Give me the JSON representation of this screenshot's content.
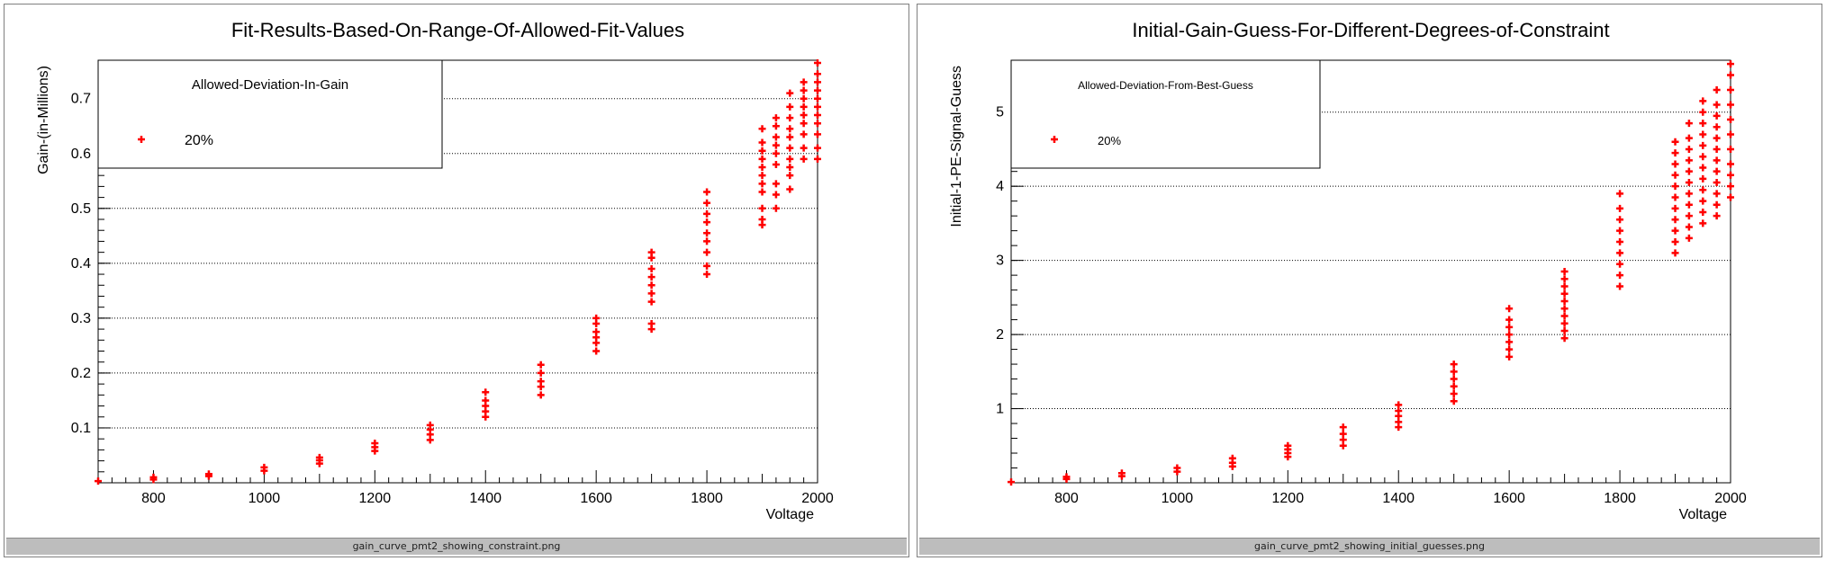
{
  "colors": {
    "marker": "#ff0000",
    "grid": "#000000",
    "frame": "#000000",
    "status_bar": "#bdbdbd"
  },
  "panels": [
    {
      "status": "gain_curve_pmt2_showing_constraint.png"
    },
    {
      "status": "gain_curve_pmt2_showing_initial_guesses.png"
    }
  ],
  "chart_data": [
    {
      "type": "scatter",
      "title": "Fit-Results-Based-On-Range-Of-Allowed-Fit-Values",
      "xlabel": "Voltage",
      "ylabel": "Gain-(in-Millions)",
      "xlim": [
        700,
        2000
      ],
      "ylim": [
        0,
        0.77
      ],
      "x_ticks": [
        800,
        1000,
        1200,
        1400,
        1600,
        1800,
        2000
      ],
      "y_ticks": [
        0.1,
        0.2,
        0.3,
        0.4,
        0.5,
        0.6,
        0.7
      ],
      "grid": "horizontal dotted",
      "legend": {
        "title": "Allowed-Deviation-In-Gain",
        "entries": [
          "20%"
        ],
        "placement": "top-left"
      },
      "series": [
        {
          "name": "20%",
          "points": [
            [
              700,
              0.003
            ],
            [
              800,
              0.006
            ],
            [
              800,
              0.01
            ],
            [
              900,
              0.012
            ],
            [
              900,
              0.016
            ],
            [
              1000,
              0.022
            ],
            [
              1000,
              0.028
            ],
            [
              1100,
              0.035
            ],
            [
              1100,
              0.041
            ],
            [
              1100,
              0.046
            ],
            [
              1200,
              0.058
            ],
            [
              1200,
              0.065
            ],
            [
              1200,
              0.072
            ],
            [
              1300,
              0.078
            ],
            [
              1300,
              0.088
            ],
            [
              1300,
              0.097
            ],
            [
              1300,
              0.105
            ],
            [
              1400,
              0.12
            ],
            [
              1400,
              0.13
            ],
            [
              1400,
              0.14
            ],
            [
              1400,
              0.15
            ],
            [
              1400,
              0.165
            ],
            [
              1500,
              0.16
            ],
            [
              1500,
              0.175
            ],
            [
              1500,
              0.185
            ],
            [
              1500,
              0.2
            ],
            [
              1500,
              0.215
            ],
            [
              1600,
              0.24
            ],
            [
              1600,
              0.255
            ],
            [
              1600,
              0.265
            ],
            [
              1600,
              0.275
            ],
            [
              1600,
              0.29
            ],
            [
              1600,
              0.3
            ],
            [
              1700,
              0.28
            ],
            [
              1700,
              0.29
            ],
            [
              1700,
              0.33
            ],
            [
              1700,
              0.345
            ],
            [
              1700,
              0.36
            ],
            [
              1700,
              0.375
            ],
            [
              1700,
              0.39
            ],
            [
              1700,
              0.41
            ],
            [
              1700,
              0.42
            ],
            [
              1800,
              0.38
            ],
            [
              1800,
              0.395
            ],
            [
              1800,
              0.42
            ],
            [
              1800,
              0.44
            ],
            [
              1800,
              0.455
            ],
            [
              1800,
              0.475
            ],
            [
              1800,
              0.49
            ],
            [
              1800,
              0.51
            ],
            [
              1800,
              0.53
            ],
            [
              1900,
              0.47
            ],
            [
              1900,
              0.48
            ],
            [
              1900,
              0.5
            ],
            [
              1900,
              0.53
            ],
            [
              1900,
              0.545
            ],
            [
              1900,
              0.56
            ],
            [
              1900,
              0.575
            ],
            [
              1900,
              0.59
            ],
            [
              1900,
              0.605
            ],
            [
              1900,
              0.62
            ],
            [
              1900,
              0.645
            ],
            [
              1925,
              0.5
            ],
            [
              1925,
              0.525
            ],
            [
              1925,
              0.545
            ],
            [
              1925,
              0.58
            ],
            [
              1925,
              0.6
            ],
            [
              1925,
              0.615
            ],
            [
              1925,
              0.63
            ],
            [
              1925,
              0.65
            ],
            [
              1925,
              0.665
            ],
            [
              1950,
              0.535
            ],
            [
              1950,
              0.56
            ],
            [
              1950,
              0.575
            ],
            [
              1950,
              0.59
            ],
            [
              1950,
              0.61
            ],
            [
              1950,
              0.63
            ],
            [
              1950,
              0.645
            ],
            [
              1950,
              0.665
            ],
            [
              1950,
              0.685
            ],
            [
              1950,
              0.71
            ],
            [
              1975,
              0.59
            ],
            [
              1975,
              0.61
            ],
            [
              1975,
              0.635
            ],
            [
              1975,
              0.655
            ],
            [
              1975,
              0.67
            ],
            [
              1975,
              0.685
            ],
            [
              1975,
              0.7
            ],
            [
              1975,
              0.715
            ],
            [
              1975,
              0.73
            ],
            [
              2000,
              0.59
            ],
            [
              2000,
              0.61
            ],
            [
              2000,
              0.635
            ],
            [
              2000,
              0.655
            ],
            [
              2000,
              0.67
            ],
            [
              2000,
              0.685
            ],
            [
              2000,
              0.7
            ],
            [
              2000,
              0.715
            ],
            [
              2000,
              0.73
            ],
            [
              2000,
              0.745
            ],
            [
              2000,
              0.765
            ]
          ]
        }
      ]
    },
    {
      "type": "scatter",
      "title": "Initial-Gain-Guess-For-Different-Degrees-of-Constraint",
      "xlabel": "Voltage",
      "ylabel": "Initial-1-PE-Signal-Guess",
      "xlim": [
        700,
        2000
      ],
      "ylim": [
        0,
        5.7
      ],
      "x_ticks": [
        800,
        1000,
        1200,
        1400,
        1600,
        1800,
        2000
      ],
      "y_ticks": [
        1,
        2,
        3,
        4,
        5
      ],
      "grid": "horizontal dotted",
      "legend": {
        "title": "Allowed-Deviation-From-Best-Guess",
        "entries": [
          "20%"
        ],
        "placement": "top-left"
      },
      "series": [
        {
          "name": "20%",
          "points": [
            [
              700,
              0.01
            ],
            [
              800,
              0.05
            ],
            [
              800,
              0.08
            ],
            [
              900,
              0.09
            ],
            [
              900,
              0.13
            ],
            [
              1000,
              0.15
            ],
            [
              1000,
              0.2
            ],
            [
              1100,
              0.22
            ],
            [
              1100,
              0.27
            ],
            [
              1100,
              0.33
            ],
            [
              1200,
              0.35
            ],
            [
              1200,
              0.4
            ],
            [
              1200,
              0.45
            ],
            [
              1200,
              0.5
            ],
            [
              1300,
              0.5
            ],
            [
              1300,
              0.58
            ],
            [
              1300,
              0.66
            ],
            [
              1300,
              0.75
            ],
            [
              1400,
              0.75
            ],
            [
              1400,
              0.82
            ],
            [
              1400,
              0.9
            ],
            [
              1400,
              0.97
            ],
            [
              1400,
              1.05
            ],
            [
              1500,
              1.1
            ],
            [
              1500,
              1.2
            ],
            [
              1500,
              1.3
            ],
            [
              1500,
              1.4
            ],
            [
              1500,
              1.5
            ],
            [
              1500,
              1.6
            ],
            [
              1600,
              1.7
            ],
            [
              1600,
              1.8
            ],
            [
              1600,
              1.9
            ],
            [
              1600,
              2.0
            ],
            [
              1600,
              2.1
            ],
            [
              1600,
              2.2
            ],
            [
              1600,
              2.35
            ],
            [
              1700,
              1.95
            ],
            [
              1700,
              2.05
            ],
            [
              1700,
              2.15
            ],
            [
              1700,
              2.25
            ],
            [
              1700,
              2.35
            ],
            [
              1700,
              2.45
            ],
            [
              1700,
              2.55
            ],
            [
              1700,
              2.65
            ],
            [
              1700,
              2.75
            ],
            [
              1700,
              2.85
            ],
            [
              1800,
              2.65
            ],
            [
              1800,
              2.8
            ],
            [
              1800,
              2.95
            ],
            [
              1800,
              3.1
            ],
            [
              1800,
              3.25
            ],
            [
              1800,
              3.4
            ],
            [
              1800,
              3.55
            ],
            [
              1800,
              3.7
            ],
            [
              1800,
              3.9
            ],
            [
              1900,
              3.1
            ],
            [
              1900,
              3.25
            ],
            [
              1900,
              3.4
            ],
            [
              1900,
              3.55
            ],
            [
              1900,
              3.7
            ],
            [
              1900,
              3.85
            ],
            [
              1900,
              4.0
            ],
            [
              1900,
              4.15
            ],
            [
              1900,
              4.3
            ],
            [
              1900,
              4.45
            ],
            [
              1900,
              4.6
            ],
            [
              1925,
              3.3
            ],
            [
              1925,
              3.45
            ],
            [
              1925,
              3.6
            ],
            [
              1925,
              3.75
            ],
            [
              1925,
              3.9
            ],
            [
              1925,
              4.05
            ],
            [
              1925,
              4.2
            ],
            [
              1925,
              4.35
            ],
            [
              1925,
              4.5
            ],
            [
              1925,
              4.65
            ],
            [
              1925,
              4.85
            ],
            [
              1950,
              3.5
            ],
            [
              1950,
              3.65
            ],
            [
              1950,
              3.8
            ],
            [
              1950,
              3.95
            ],
            [
              1950,
              4.1
            ],
            [
              1950,
              4.25
            ],
            [
              1950,
              4.4
            ],
            [
              1950,
              4.55
            ],
            [
              1950,
              4.7
            ],
            [
              1950,
              4.85
            ],
            [
              1950,
              5.0
            ],
            [
              1950,
              5.15
            ],
            [
              1975,
              3.6
            ],
            [
              1975,
              3.75
            ],
            [
              1975,
              3.9
            ],
            [
              1975,
              4.05
            ],
            [
              1975,
              4.2
            ],
            [
              1975,
              4.35
            ],
            [
              1975,
              4.5
            ],
            [
              1975,
              4.65
            ],
            [
              1975,
              4.8
            ],
            [
              1975,
              4.95
            ],
            [
              1975,
              5.1
            ],
            [
              1975,
              5.3
            ],
            [
              2000,
              3.85
            ],
            [
              2000,
              4.0
            ],
            [
              2000,
              4.15
            ],
            [
              2000,
              4.3
            ],
            [
              2000,
              4.5
            ],
            [
              2000,
              4.7
            ],
            [
              2000,
              4.9
            ],
            [
              2000,
              5.1
            ],
            [
              2000,
              5.3
            ],
            [
              2000,
              5.5
            ],
            [
              2000,
              5.65
            ]
          ]
        }
      ]
    }
  ]
}
